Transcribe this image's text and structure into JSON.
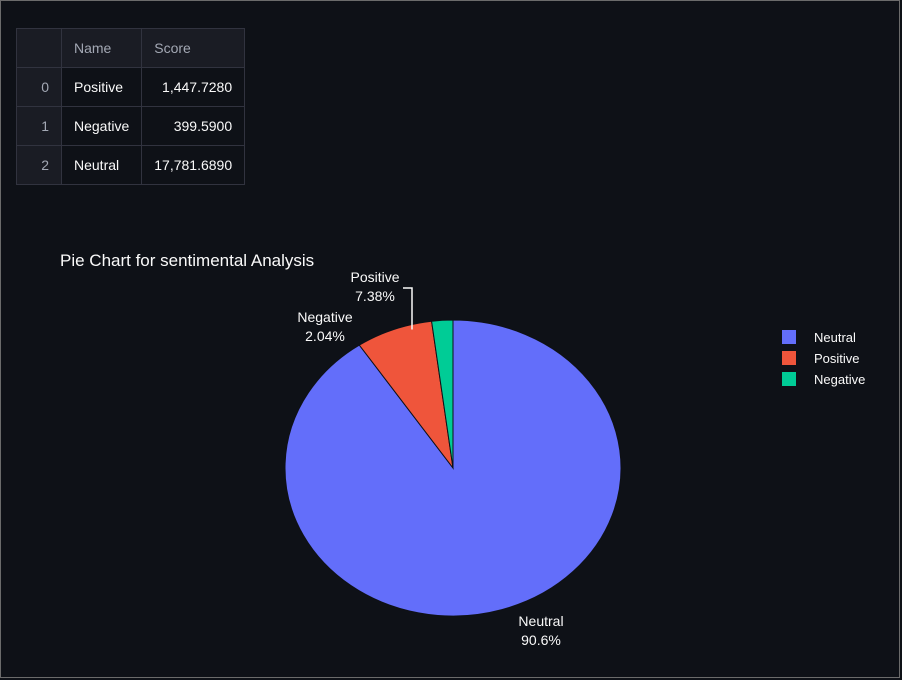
{
  "table": {
    "columns": [
      "",
      "Name",
      "Score"
    ],
    "rows": [
      {
        "index": "0",
        "name": "Positive",
        "score": "1,447.7280"
      },
      {
        "index": "1",
        "name": "Negative",
        "score": "399.5900"
      },
      {
        "index": "2",
        "name": "Neutral",
        "score": "17,781.6890"
      }
    ]
  },
  "chart_data": {
    "type": "pie",
    "title": "Pie Chart for sentimental Analysis",
    "labels": [
      "Neutral",
      "Positive",
      "Negative"
    ],
    "values": [
      17781.689,
      1447.728,
      399.59
    ],
    "percent_labels": [
      "90.6%",
      "7.38%",
      "2.04%"
    ],
    "colors": [
      "#636efa",
      "#ef553b",
      "#00cc96"
    ],
    "legend": {
      "position": "right",
      "entries": [
        "Neutral",
        "Positive",
        "Negative"
      ]
    }
  }
}
